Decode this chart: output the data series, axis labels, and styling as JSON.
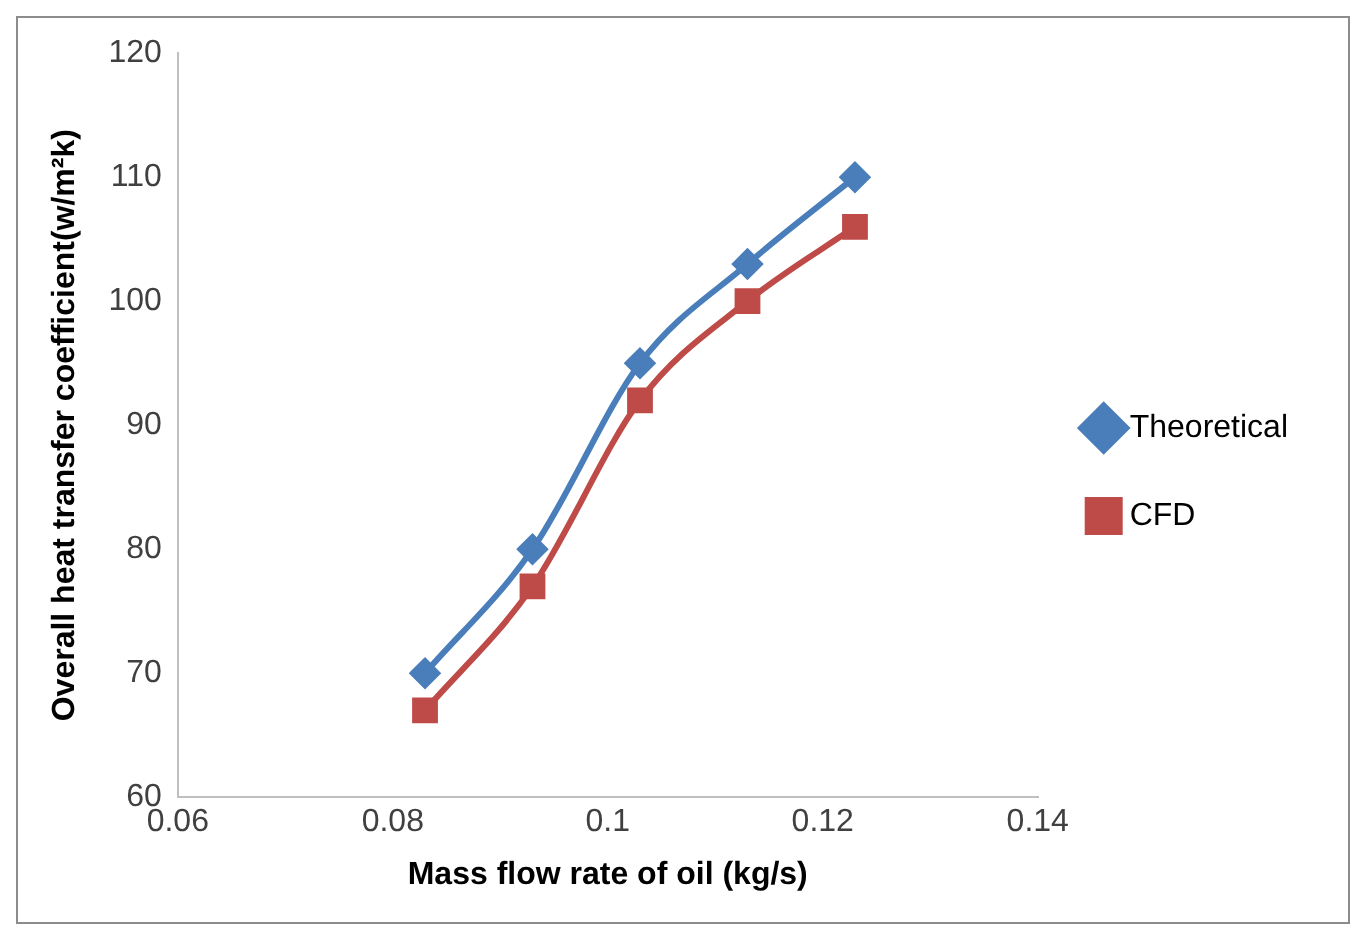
{
  "chart_data": {
    "type": "line",
    "xlabel": "Mass flow rate of oil (kg/s)",
    "ylabel": "Overall heat transfer coefficient(w/m²k)",
    "x": [
      0.083,
      0.093,
      0.103,
      0.113,
      0.123
    ],
    "series": [
      {
        "name": "Theoretical",
        "color": "#4a7ebb",
        "marker": "diamond",
        "values": [
          70,
          80,
          95,
          103,
          110
        ]
      },
      {
        "name": "CFD",
        "color": "#be4b48",
        "marker": "square",
        "values": [
          67,
          77,
          92,
          100,
          106
        ]
      }
    ],
    "xlim": [
      0.06,
      0.14
    ],
    "xticks": [
      0.06,
      0.08,
      0.1,
      0.12,
      0.14
    ],
    "ylim": [
      60,
      120
    ],
    "yticks": [
      60,
      70,
      80,
      90,
      100,
      110,
      120
    ],
    "grid": false,
    "legend": "right",
    "line_style": "solid"
  }
}
